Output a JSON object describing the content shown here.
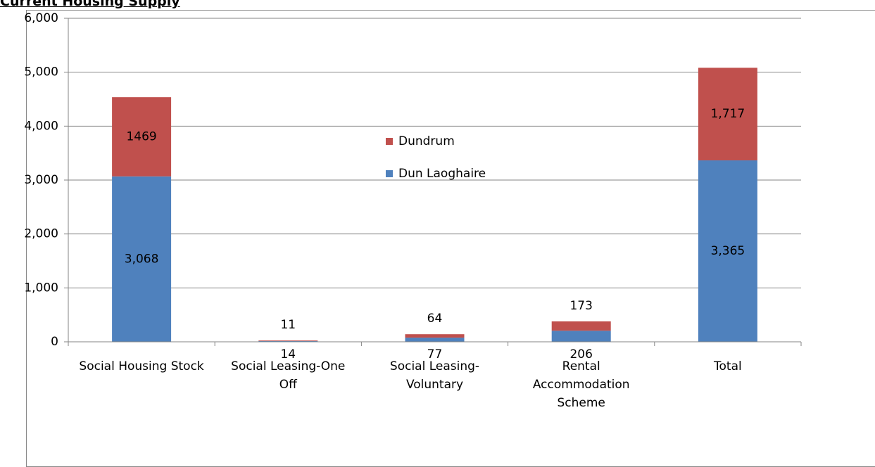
{
  "chart_data": {
    "type": "stacked_bar",
    "title": "Current Housing Supply",
    "categories": [
      "Social Housing Stock",
      "Social Leasing-One Off",
      "Social Leasing-Voluntary",
      "Rental Accommodation Scheme",
      "Total"
    ],
    "series": [
      {
        "name": "Dun Laoghaire",
        "color": "#4f81bd",
        "values": [
          3068,
          14,
          77,
          206,
          3365
        ],
        "value_labels": [
          "3,068",
          "14",
          "77",
          "206",
          "3,365"
        ]
      },
      {
        "name": "Dundrum",
        "color": "#c0504d",
        "values": [
          1469,
          11,
          64,
          173,
          1717
        ],
        "value_labels": [
          "1469",
          "11",
          "64",
          "173",
          "1,717"
        ]
      }
    ],
    "ylim": [
      0,
      6000
    ],
    "yticks": [
      0,
      {
        "value": 1000,
        "label": "1,000"
      },
      {
        "value": 2000,
        "label": "2,000"
      },
      {
        "value": 3000,
        "label": "3,000"
      },
      {
        "value": 4000,
        "label": "4,000"
      },
      {
        "value": 5000,
        "label": "5,000"
      },
      {
        "value": 6000,
        "label": "6,000"
      }
    ],
    "grid": true
  }
}
